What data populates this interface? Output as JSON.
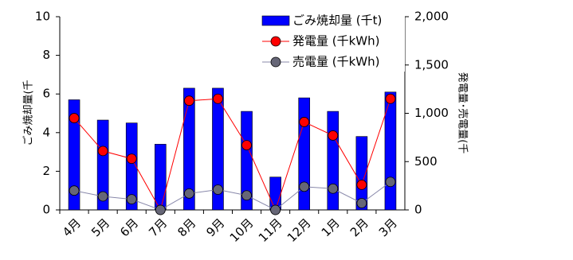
{
  "chart_data": {
    "type": "bar_line",
    "categories": [
      "4月",
      "5月",
      "6月",
      "7月",
      "8月",
      "9月",
      "10月",
      "11月",
      "12月",
      "1月",
      "2月",
      "3月"
    ],
    "y_label": "ごみ焼却量(千",
    "y2_label": "発電量･売電量(千",
    "ylim": [
      0,
      10
    ],
    "yticks": [
      0,
      2,
      4,
      6,
      8,
      10
    ],
    "y2lim": [
      0,
      2000
    ],
    "y2ticks": [
      0,
      500,
      {
        "value": 1000,
        "label": "1,000"
      },
      {
        "value": 1500,
        "label": "1,500"
      },
      {
        "value": 2000,
        "label": "2,000"
      }
    ],
    "legend": "top-right",
    "series": [
      {
        "name": "ごみ焼却量 (千t)",
        "type": "bar",
        "color": "#0000ff",
        "values": [
          5.7,
          4.65,
          4.5,
          3.4,
          6.3,
          6.3,
          5.1,
          1.7,
          5.8,
          5.1,
          3.8,
          6.1
        ]
      },
      {
        "name": "発電量 (千kWh)",
        "type": "line",
        "axis": "y2",
        "color": "#ff0000",
        "line_color": "#ff0000",
        "values": [
          950,
          610,
          530,
          0,
          1130,
          1150,
          670,
          0,
          910,
          770,
          260,
          1150
        ]
      },
      {
        "name": "売電量 (千kWh)",
        "type": "line",
        "axis": "y2",
        "color": "#666677",
        "line_color": "#8888aa",
        "values": [
          200,
          140,
          110,
          0,
          170,
          210,
          150,
          0,
          240,
          220,
          70,
          290
        ]
      }
    ]
  }
}
